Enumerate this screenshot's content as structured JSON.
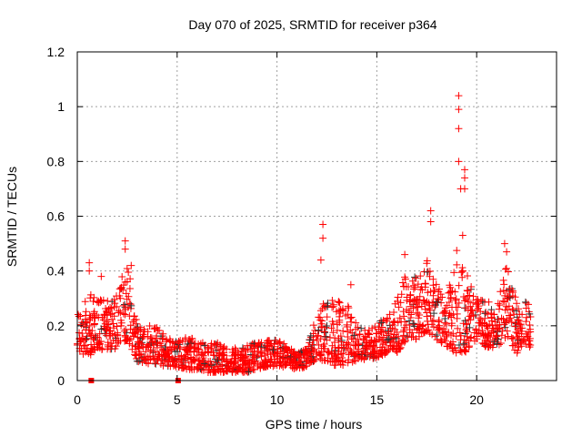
{
  "chart_data": {
    "type": "scatter",
    "title": "Day 070 of 2025, SRMTID for receiver p364",
    "xlabel": "GPS time / hours",
    "ylabel": "SRMTID / TECUs",
    "xlim": [
      0,
      24
    ],
    "ylim": [
      0,
      1.2
    ],
    "xticks": [
      0,
      5,
      10,
      15,
      20
    ],
    "xtick_labels": [
      "0",
      "5",
      "10",
      "15",
      "20"
    ],
    "yticks": [
      0,
      0.2,
      0.4,
      0.6,
      0.8,
      1,
      1.2
    ],
    "ytick_labels": [
      "0",
      "0.2",
      "0.4",
      "0.6",
      "0.8",
      "1",
      "1.2"
    ],
    "grid": true,
    "series_color": "#ff0000",
    "secondary_color": "#333333",
    "envelope_hours_low_high": [
      [
        0,
        0.1,
        0.25
      ],
      [
        0.5,
        0.08,
        0.3
      ],
      [
        1,
        0.12,
        0.35
      ],
      [
        1.5,
        0.1,
        0.3
      ],
      [
        2,
        0.12,
        0.32
      ],
      [
        2.5,
        0.15,
        0.45
      ],
      [
        3,
        0.07,
        0.22
      ],
      [
        3.5,
        0.06,
        0.2
      ],
      [
        4,
        0.06,
        0.2
      ],
      [
        4.5,
        0.05,
        0.16
      ],
      [
        5,
        0.05,
        0.15
      ],
      [
        5.5,
        0.04,
        0.16
      ],
      [
        6,
        0.04,
        0.15
      ],
      [
        6.5,
        0.03,
        0.14
      ],
      [
        7,
        0.03,
        0.14
      ],
      [
        7.5,
        0.03,
        0.12
      ],
      [
        8,
        0.03,
        0.12
      ],
      [
        8.5,
        0.03,
        0.13
      ],
      [
        9,
        0.04,
        0.14
      ],
      [
        9.5,
        0.05,
        0.15
      ],
      [
        10,
        0.05,
        0.15
      ],
      [
        10.5,
        0.05,
        0.13
      ],
      [
        11,
        0.04,
        0.1
      ],
      [
        11.5,
        0.05,
        0.12
      ],
      [
        12,
        0.08,
        0.25
      ],
      [
        12.5,
        0.06,
        0.3
      ],
      [
        13,
        0.05,
        0.3
      ],
      [
        13.5,
        0.06,
        0.3
      ],
      [
        14,
        0.07,
        0.2
      ],
      [
        14.5,
        0.08,
        0.18
      ],
      [
        15,
        0.08,
        0.2
      ],
      [
        15.5,
        0.1,
        0.25
      ],
      [
        16,
        0.1,
        0.3
      ],
      [
        16.5,
        0.15,
        0.4
      ],
      [
        17,
        0.15,
        0.4
      ],
      [
        17.5,
        0.18,
        0.45
      ],
      [
        18,
        0.15,
        0.35
      ],
      [
        18.5,
        0.12,
        0.3
      ],
      [
        19,
        0.1,
        0.5
      ],
      [
        19.5,
        0.1,
        0.4
      ],
      [
        20,
        0.15,
        0.3
      ],
      [
        20.5,
        0.12,
        0.3
      ],
      [
        21,
        0.12,
        0.28
      ],
      [
        21.5,
        0.15,
        0.45
      ],
      [
        22,
        0.1,
        0.3
      ],
      [
        22.7,
        0.12,
        0.28
      ]
    ],
    "peak_points": [
      [
        0.6,
        0.43
      ],
      [
        0.6,
        0.4
      ],
      [
        1.2,
        0.38
      ],
      [
        2.4,
        0.51
      ],
      [
        2.4,
        0.48
      ],
      [
        2.7,
        0.42
      ],
      [
        12.3,
        0.57
      ],
      [
        12.3,
        0.52
      ],
      [
        12.2,
        0.44
      ],
      [
        13.7,
        0.35
      ],
      [
        16.4,
        0.46
      ],
      [
        17.7,
        0.62
      ],
      [
        17.7,
        0.58
      ],
      [
        19.1,
        1.04
      ],
      [
        19.1,
        0.99
      ],
      [
        19.1,
        0.92
      ],
      [
        19.1,
        0.8
      ],
      [
        19.2,
        0.7
      ],
      [
        19.4,
        0.77
      ],
      [
        19.4,
        0.74
      ],
      [
        19.4,
        0.7
      ],
      [
        19.3,
        0.53
      ],
      [
        21.4,
        0.5
      ],
      [
        21.5,
        0.47
      ]
    ],
    "marker_squares": [
      [
        0.7,
        0
      ],
      [
        5.05,
        0
      ]
    ]
  }
}
